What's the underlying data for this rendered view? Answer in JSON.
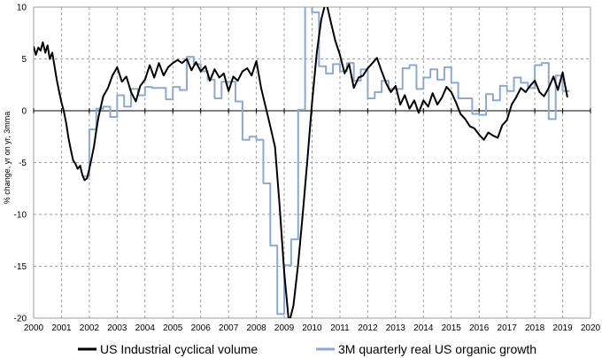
{
  "chart_data": {
    "type": "line",
    "title": "",
    "xlabel": "",
    "ylabel": "% change, yr on yr, 3mma",
    "xlim": [
      2000,
      2020
    ],
    "ylim": [
      -20,
      10
    ],
    "x_ticks": [
      "2000",
      "2001",
      "2002",
      "2003",
      "2004",
      "2005",
      "2006",
      "2007",
      "2008",
      "2009",
      "2010",
      "2011",
      "2012",
      "2013",
      "2014",
      "2015",
      "2016",
      "2017",
      "2018",
      "2019",
      "2020"
    ],
    "y_ticks": [
      "10",
      "5",
      "0",
      "-5",
      "-10",
      "-15",
      "-20"
    ],
    "grid": true,
    "legend_position": "bottom",
    "colors": {
      "industrial": "#000000",
      "organic": "#8ea9cc",
      "grid": "#9e9e9e"
    },
    "series": [
      {
        "name": "US Industrial cyclical volume",
        "x": [
          2000.0,
          2000.08,
          2000.17,
          2000.25,
          2000.33,
          2000.42,
          2000.5,
          2000.58,
          2000.67,
          2000.75,
          2000.83,
          2000.92,
          2001.0,
          2001.08,
          2001.17,
          2001.25,
          2001.33,
          2001.42,
          2001.5,
          2001.58,
          2001.67,
          2001.75,
          2001.83,
          2001.92,
          2002.0,
          2002.08,
          2002.17,
          2002.25,
          2002.33,
          2002.5,
          2002.67,
          2002.83,
          2003.0,
          2003.17,
          2003.33,
          2003.5,
          2003.67,
          2003.83,
          2004.0,
          2004.17,
          2004.33,
          2004.5,
          2004.67,
          2004.83,
          2005.0,
          2005.17,
          2005.33,
          2005.5,
          2005.67,
          2005.83,
          2006.0,
          2006.17,
          2006.33,
          2006.5,
          2006.67,
          2006.83,
          2007.0,
          2007.17,
          2007.33,
          2007.5,
          2007.67,
          2007.83,
          2008.0,
          2008.17,
          2008.33,
          2008.5,
          2008.67,
          2008.83,
          2009.0,
          2009.17,
          2009.33,
          2009.5,
          2009.67,
          2009.83,
          2010.0,
          2010.17,
          2010.33,
          2010.5,
          2010.67,
          2010.83,
          2011.0,
          2011.17,
          2011.33,
          2011.5,
          2011.67,
          2011.83,
          2012.0,
          2012.17,
          2012.33,
          2012.5,
          2012.67,
          2012.83,
          2013.0,
          2013.17,
          2013.33,
          2013.5,
          2013.67,
          2013.83,
          2014.0,
          2014.17,
          2014.33,
          2014.5,
          2014.67,
          2014.83,
          2015.0,
          2015.17,
          2015.33,
          2015.5,
          2015.67,
          2015.83,
          2016.0,
          2016.17,
          2016.33,
          2016.5,
          2016.67,
          2016.83,
          2017.0,
          2017.17,
          2017.33,
          2017.5,
          2017.67,
          2017.83,
          2018.0,
          2018.17,
          2018.33,
          2018.5,
          2018.67,
          2018.83,
          2019.0,
          2019.17
        ],
        "y": [
          6.2,
          5.4,
          6.1,
          5.8,
          6.6,
          5.6,
          6.3,
          5.0,
          5.6,
          4.3,
          3.0,
          1.8,
          0.8,
          0.0,
          -1.2,
          -2.6,
          -3.7,
          -4.8,
          -5.1,
          -5.6,
          -5.3,
          -6.2,
          -6.7,
          -6.5,
          -5.6,
          -4.6,
          -3.4,
          -1.9,
          -0.6,
          1.4,
          2.2,
          3.4,
          4.2,
          2.8,
          3.3,
          1.8,
          0.9,
          2.4,
          3.0,
          4.4,
          3.2,
          4.6,
          3.4,
          4.2,
          4.6,
          4.9,
          4.6,
          5.0,
          3.9,
          4.7,
          3.8,
          4.3,
          2.9,
          4.0,
          3.2,
          3.6,
          1.9,
          3.3,
          2.9,
          3.8,
          4.1,
          3.4,
          4.8,
          2.2,
          0.4,
          -1.5,
          -3.5,
          -9.0,
          -15.6,
          -20.5,
          -18.8,
          -14.8,
          -9.8,
          -4.8,
          0.8,
          5.6,
          8.8,
          10.6,
          8.6,
          6.8,
          5.4,
          3.6,
          4.5,
          2.2,
          3.2,
          3.4,
          4.1,
          4.6,
          5.1,
          3.8,
          2.6,
          1.8,
          2.4,
          0.6,
          1.5,
          0.2,
          1.0,
          -0.2,
          1.0,
          0.4,
          1.7,
          0.6,
          1.3,
          2.3,
          1.8,
          0.8,
          -0.3,
          -0.8,
          -1.5,
          -1.7,
          -2.3,
          -2.8,
          -2.1,
          -2.4,
          -2.6,
          -1.4,
          -0.9,
          0.6,
          1.3,
          2.2,
          1.8,
          2.4,
          2.9,
          1.8,
          1.4,
          2.2,
          3.3,
          2.0,
          3.7,
          1.3
        ]
      },
      {
        "name": "3M quarterly real US organic growth",
        "x": [
          2001.75,
          2002.0,
          2002.25,
          2002.5,
          2002.75,
          2003.0,
          2003.25,
          2003.5,
          2003.75,
          2004.0,
          2004.25,
          2004.5,
          2004.75,
          2005.0,
          2005.25,
          2005.5,
          2005.75,
          2006.0,
          2006.25,
          2006.5,
          2006.75,
          2007.0,
          2007.25,
          2007.5,
          2007.75,
          2008.0,
          2008.25,
          2008.5,
          2008.75,
          2009.0,
          2009.25,
          2009.5,
          2009.75,
          2010.0,
          2010.25,
          2010.5,
          2010.75,
          2011.0,
          2011.25,
          2011.5,
          2011.75,
          2012.0,
          2012.25,
          2012.5,
          2012.75,
          2013.0,
          2013.25,
          2013.5,
          2013.75,
          2014.0,
          2014.25,
          2014.5,
          2014.75,
          2015.0,
          2015.25,
          2015.5,
          2015.75,
          2016.0,
          2016.25,
          2016.5,
          2016.75,
          2017.0,
          2017.25,
          2017.5,
          2017.75,
          2018.0,
          2018.25,
          2018.5,
          2018.75,
          2019.0
        ],
        "y": [
          -6.3,
          -1.8,
          0.2,
          0.4,
          -0.6,
          1.5,
          0.4,
          2.1,
          1.5,
          2.3,
          2.2,
          2.2,
          1.1,
          2.3,
          2.0,
          5.2,
          4.5,
          3.8,
          3.0,
          1.2,
          2.8,
          2.8,
          0.9,
          -2.8,
          -2.5,
          -2.8,
          -7.0,
          -13.0,
          -19.6,
          -14.9,
          -12.4,
          0.1,
          11.0,
          9.5,
          4.3,
          3.6,
          4.5,
          3.8,
          4.6,
          2.9,
          4.0,
          1.2,
          1.8,
          2.9,
          2.1,
          2.1,
          4.1,
          4.4,
          2.1,
          3.2,
          4.0,
          3.0,
          4.2,
          2.7,
          1.2,
          1.2,
          -0.3,
          -0.4,
          1.6,
          1.0,
          2.4,
          1.9,
          3.2,
          2.7,
          2.2,
          4.4,
          4.6,
          -0.8,
          3.4,
          1.9
        ]
      }
    ]
  }
}
